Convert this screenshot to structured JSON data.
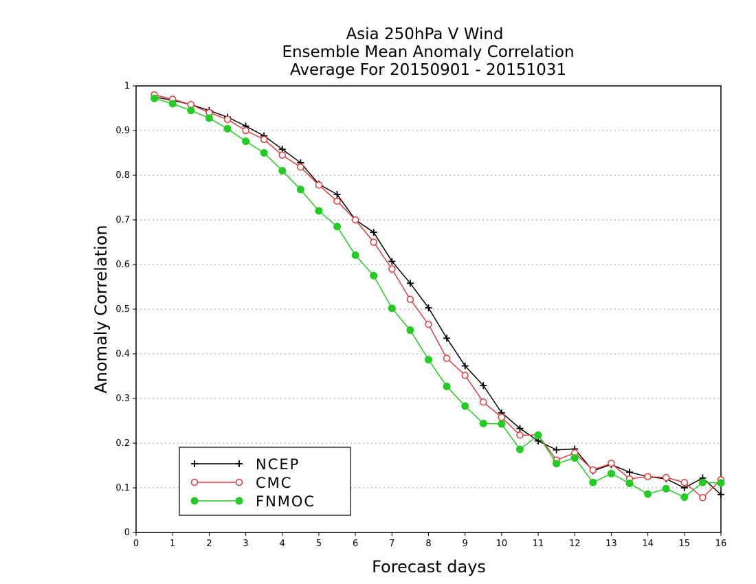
{
  "chart_data": {
    "type": "line",
    "title": "Asia 250hPa V Wind",
    "subtitle_lines": [
      "Ensemble Mean Anomaly Correlation",
      "Average For 20150901 - 20151031"
    ],
    "xlabel": "Forecast days",
    "ylabel": "Anomaly Correlation",
    "xlim": [
      0,
      16
    ],
    "ylim": [
      0,
      1
    ],
    "xticks": [
      "0",
      "1",
      "2",
      "3",
      "4",
      "5",
      "6",
      "7",
      "8",
      "9",
      "10",
      "11",
      "12",
      "13",
      "14",
      "15",
      "16"
    ],
    "yticks": [
      "0",
      "0.1",
      "0.2",
      "0.3",
      "0.4",
      "0.5",
      "0.6",
      "0.7",
      "0.8",
      "0.9",
      "1"
    ],
    "grid": "horizontal dotted",
    "legend_position": "bottom-left",
    "x": [
      0.5,
      1,
      1.5,
      2,
      2.5,
      3,
      3.5,
      4,
      4.5,
      5,
      5.5,
      6,
      6.5,
      7,
      7.5,
      8,
      8.5,
      9,
      9.5,
      10,
      10.5,
      11,
      11.5,
      12,
      12.5,
      13,
      13.5,
      14,
      14.5,
      15,
      15.5,
      16
    ],
    "series": [
      {
        "name": "NCEP",
        "color": "#000000",
        "marker": "plus",
        "values": [
          0.975,
          0.968,
          0.958,
          0.945,
          0.93,
          0.91,
          0.888,
          0.858,
          0.828,
          0.78,
          0.757,
          0.7,
          0.672,
          0.607,
          0.558,
          0.503,
          0.435,
          0.373,
          0.329,
          0.268,
          0.233,
          0.205,
          0.185,
          0.187,
          0.138,
          0.152,
          0.135,
          0.125,
          0.12,
          0.1,
          0.122,
          0.085
        ]
      },
      {
        "name": "CMC",
        "color": "#e03c3c",
        "marker": "open-circle",
        "values": [
          0.98,
          0.97,
          0.958,
          0.94,
          0.925,
          0.9,
          0.88,
          0.845,
          0.818,
          0.778,
          0.742,
          0.7,
          0.65,
          0.59,
          0.522,
          0.466,
          0.39,
          0.352,
          0.292,
          0.258,
          0.218,
          0.218,
          0.162,
          0.178,
          0.14,
          0.155,
          0.12,
          0.125,
          0.123,
          0.112,
          0.078,
          0.118
        ]
      },
      {
        "name": "FNMOC",
        "color": "#22cc22",
        "marker": "filled-circle",
        "values": [
          0.972,
          0.96,
          0.945,
          0.928,
          0.904,
          0.876,
          0.85,
          0.81,
          0.768,
          0.72,
          0.685,
          0.621,
          0.575,
          0.502,
          0.453,
          0.387,
          0.327,
          0.283,
          0.244,
          0.243,
          0.186,
          0.218,
          0.154,
          0.167,
          0.112,
          0.132,
          0.11,
          0.086,
          0.098,
          0.079,
          0.112,
          0.111
        ]
      }
    ]
  }
}
